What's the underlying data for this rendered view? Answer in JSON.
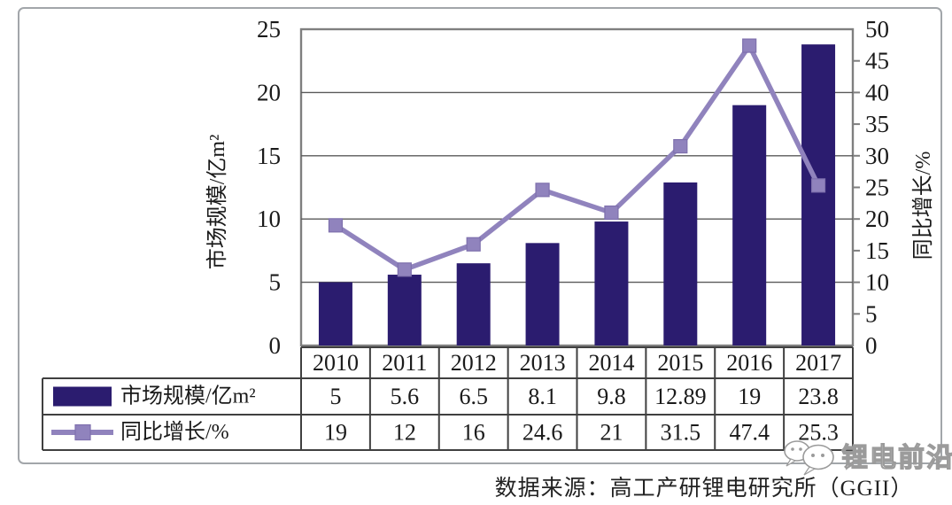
{
  "chart_data": {
    "type": "bar",
    "subtype": "combo-bar-line",
    "categories": [
      "2010",
      "2011",
      "2012",
      "2013",
      "2014",
      "2015",
      "2016",
      "2017"
    ],
    "series": [
      {
        "name": "市场规模/亿m²",
        "type": "bar",
        "axis": "left",
        "values": [
          5,
          5.6,
          6.5,
          8.1,
          9.8,
          12.89,
          19,
          23.8
        ]
      },
      {
        "name": "同比增长/%",
        "type": "line",
        "axis": "right",
        "marker": "square",
        "values": [
          19,
          12,
          16,
          24.6,
          21,
          31.5,
          47.4,
          25.3
        ]
      }
    ],
    "left_axis": {
      "title": "市场规模/亿m²",
      "min": 0,
      "max": 25,
      "step": 5
    },
    "right_axis": {
      "title": "同比增长/%",
      "min": 0,
      "max": 50,
      "step": 5
    },
    "grid": true,
    "legend_position": "table-left"
  },
  "table": {
    "header_row": [
      "2010",
      "2011",
      "2012",
      "2013",
      "2014",
      "2015",
      "2016",
      "2017"
    ],
    "rows": [
      {
        "label": "市场规模/亿m²",
        "legend": "bar-swatch",
        "values": [
          "5",
          "5.6",
          "6.5",
          "8.1",
          "9.8",
          "12.89",
          "19",
          "23.8"
        ]
      },
      {
        "label": "同比增长/%",
        "legend": "line-marker",
        "values": [
          "19",
          "12",
          "16",
          "24.6",
          "21",
          "31.5",
          "47.4",
          "25.3"
        ]
      }
    ]
  },
  "caption": {
    "source_text": "数据来源：高工产研锂电研究所（GGII）"
  },
  "watermark": {
    "text": "锂电前沿",
    "icon": "chat-bubbles-icon"
  },
  "colors": {
    "bar": "#2b1c6f",
    "line": "#9083bd",
    "marker_edge": "#7e70ad",
    "grid": "#5a5a5a",
    "plot_border": "#7f7f7f",
    "table_border": "#404040",
    "frame": "#a2a6aa",
    "text": "#1a1a1a",
    "watermark": "#9b9b9b"
  }
}
